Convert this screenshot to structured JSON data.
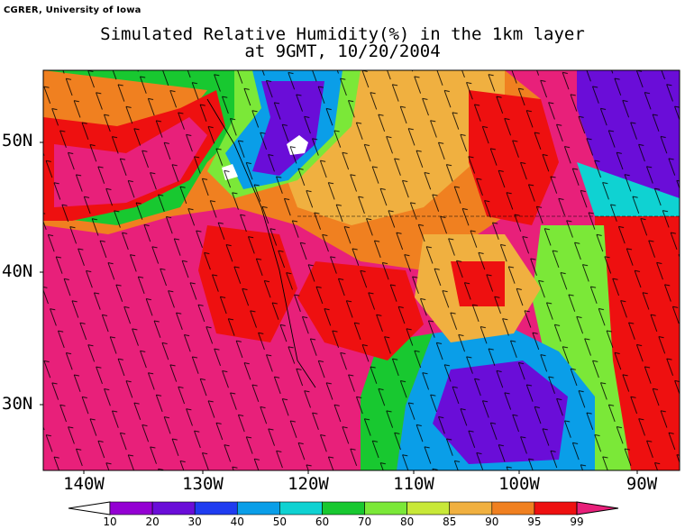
{
  "credit": "CGRER, University of Iowa",
  "title_line1": "Simulated Relative Humidity(%) in the 1km layer",
  "title_line2": "at 9GMT, 10/20/2004",
  "lat_labels": [
    "50N",
    "40N",
    "30N"
  ],
  "lon_labels": [
    "140W",
    "130W",
    "120W",
    "110W",
    "100W",
    "90W"
  ],
  "colorbar": {
    "levels": [
      "10",
      "20",
      "30",
      "40",
      "50",
      "60",
      "70",
      "80",
      "85",
      "90",
      "95",
      "99"
    ],
    "colors": [
      "#9400d3",
      "#6a0dd8",
      "#1f3cf0",
      "#0a9ee8",
      "#0fd2d2",
      "#18c830",
      "#7be838",
      "#c8e838",
      "#f0b040",
      "#f08020",
      "#ee1010",
      "#e8207a"
    ]
  }
}
